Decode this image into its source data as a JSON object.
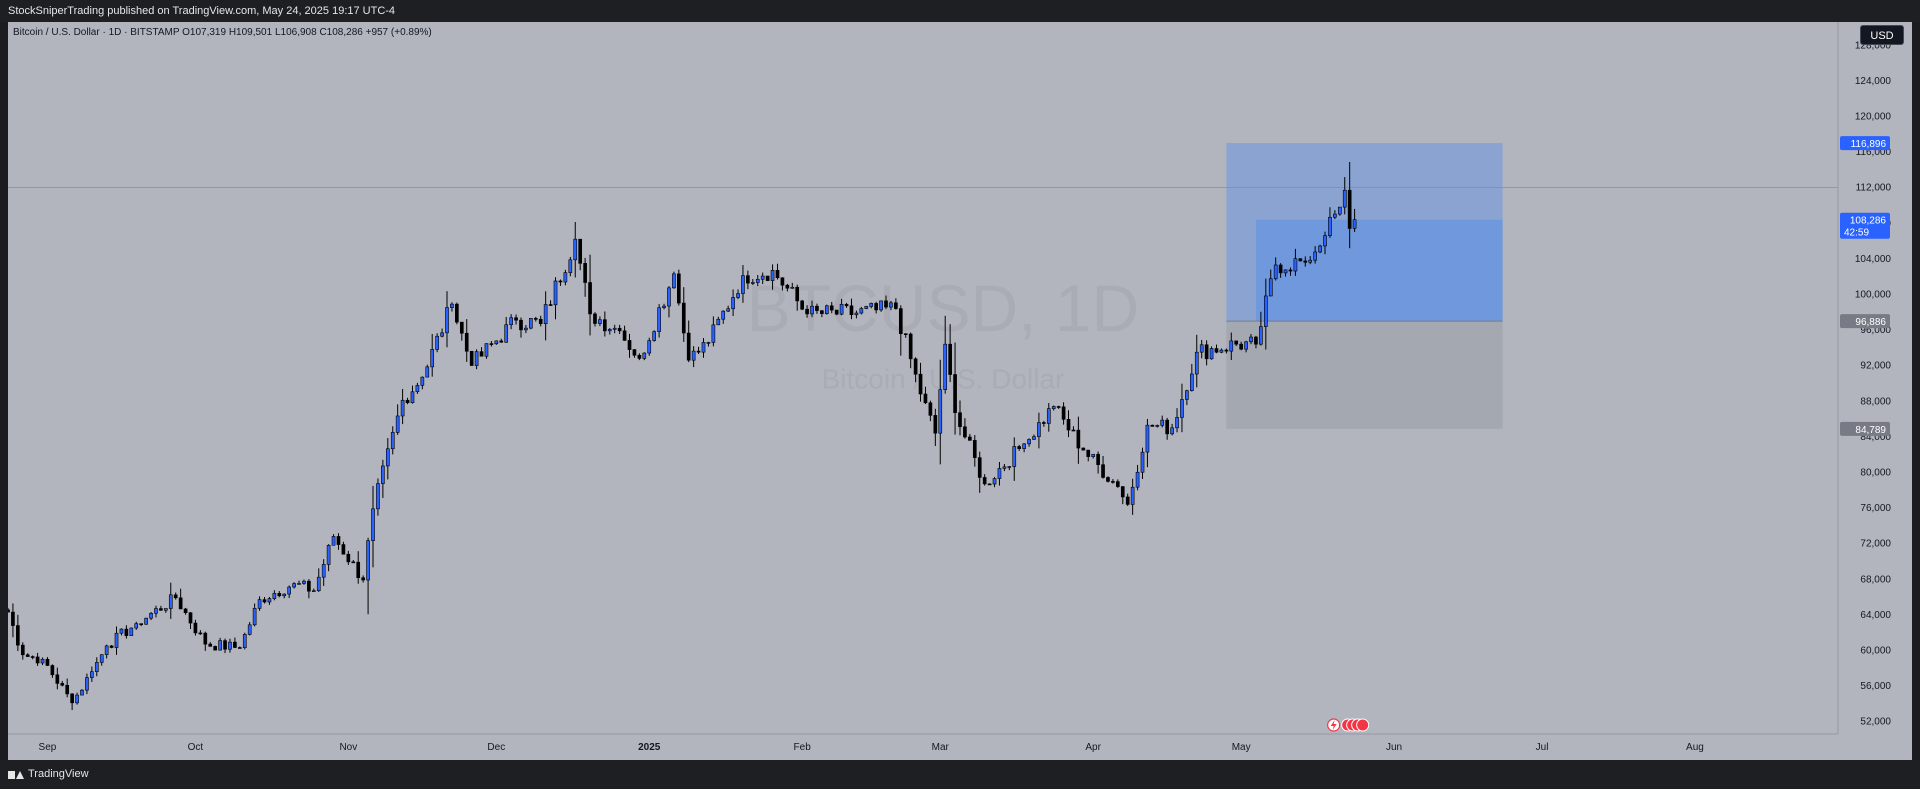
{
  "header": {
    "published_text": "StockSniperTrading published on TradingView.com, May 24, 2025 19:17 UTC-4"
  },
  "footer": {
    "brand": "TradingView"
  },
  "chart": {
    "legend": "Bitcoin / U.S. Dollar · 1D · BITSTAMP  O107,319  H109,501  L106,908  C108,286  +957 (+0.89%)",
    "currency": "USD",
    "watermark_symbol": "BTCUSD, 1D",
    "watermark_name": "Bitcoin / U.S. Dollar",
    "colors": {
      "background": "#b2b5be",
      "up_candle": "#2962ff",
      "down_candle": "#000000",
      "target_zone": "#5b8fe6",
      "stop_zone": "#9ea2ab",
      "price_tag_blue": "#2962ff",
      "price_tag_gray": "#787b86"
    }
  },
  "chart_data": {
    "type": "candlestick",
    "symbol": "Bitcoin / U.S. Dollar",
    "interval": "1D",
    "exchange": "BITSTAMP",
    "ohlc_last": {
      "open": 107319,
      "high": 109501,
      "low": 106908,
      "close": 108286,
      "change": 957,
      "change_pct": 0.89
    },
    "ylim": [
      50500,
      130500
    ],
    "y_ticks": [
      52000,
      56000,
      60000,
      64000,
      68000,
      72000,
      76000,
      80000,
      84000,
      88000,
      92000,
      96000,
      100000,
      104000,
      108000,
      112000,
      116000,
      120000,
      124000,
      128000
    ],
    "x_labels": [
      {
        "date": "2024-09-01",
        "label": "Sep"
      },
      {
        "date": "2024-10-01",
        "label": "Oct"
      },
      {
        "date": "2024-11-01",
        "label": "Nov"
      },
      {
        "date": "2024-12-01",
        "label": "Dec"
      },
      {
        "date": "2025-01-01",
        "label": "2025"
      },
      {
        "date": "2025-02-01",
        "label": "Feb"
      },
      {
        "date": "2025-03-01",
        "label": "Mar"
      },
      {
        "date": "2025-04-01",
        "label": "Apr"
      },
      {
        "date": "2025-05-01",
        "label": "May"
      },
      {
        "date": "2025-06-01",
        "label": "Jun"
      },
      {
        "date": "2025-07-01",
        "label": "Jul"
      },
      {
        "date": "2025-08-01",
        "label": "Aug"
      }
    ],
    "x_range": [
      "2024-08-24",
      "2025-08-30"
    ],
    "first_date": "2024-08-24",
    "last_date": "2025-05-24",
    "anchors": [
      {
        "date": "2024-08-24",
        "close": 64200
      },
      {
        "date": "2024-08-27",
        "close": 59400
      },
      {
        "date": "2024-08-31",
        "close": 58900
      },
      {
        "date": "2024-09-06",
        "close": 54000
      },
      {
        "date": "2024-09-10",
        "close": 57500
      },
      {
        "date": "2024-09-13",
        "close": 60400
      },
      {
        "date": "2024-09-19",
        "close": 62900
      },
      {
        "date": "2024-09-27",
        "close": 65800
      },
      {
        "date": "2024-10-03",
        "close": 60600
      },
      {
        "date": "2024-10-10",
        "close": 60200
      },
      {
        "date": "2024-10-14",
        "close": 65600
      },
      {
        "date": "2024-10-21",
        "close": 67400
      },
      {
        "date": "2024-10-25",
        "close": 66600
      },
      {
        "date": "2024-10-29",
        "close": 72700
      },
      {
        "date": "2024-11-04",
        "close": 67800
      },
      {
        "date": "2024-11-06",
        "close": 75800
      },
      {
        "date": "2024-11-12",
        "close": 88000
      },
      {
        "date": "2024-11-16",
        "close": 90600
      },
      {
        "date": "2024-11-22",
        "close": 98800
      },
      {
        "date": "2024-11-26",
        "close": 91900
      },
      {
        "date": "2024-12-05",
        "close": 97000
      },
      {
        "date": "2024-12-10",
        "close": 96600
      },
      {
        "date": "2024-12-17",
        "close": 106100
      },
      {
        "date": "2024-12-20",
        "close": 97700
      },
      {
        "date": "2024-12-26",
        "close": 95800
      },
      {
        "date": "2024-12-30",
        "close": 92700
      },
      {
        "date": "2025-01-06",
        "close": 102200
      },
      {
        "date": "2025-01-09",
        "close": 92500
      },
      {
        "date": "2025-01-13",
        "close": 94500
      },
      {
        "date": "2025-01-20",
        "close": 102000
      },
      {
        "date": "2025-01-26",
        "close": 102600
      },
      {
        "date": "2025-02-02",
        "close": 97700
      },
      {
        "date": "2025-02-12",
        "close": 97800
      },
      {
        "date": "2025-02-20",
        "close": 98300
      },
      {
        "date": "2025-02-25",
        "close": 88700
      },
      {
        "date": "2025-02-28",
        "close": 84300
      },
      {
        "date": "2025-03-02",
        "close": 94300
      },
      {
        "date": "2025-03-04",
        "close": 86600
      },
      {
        "date": "2025-03-10",
        "close": 78600
      },
      {
        "date": "2025-03-18",
        "close": 83100
      },
      {
        "date": "2025-03-24",
        "close": 87300
      },
      {
        "date": "2025-03-30",
        "close": 82400
      },
      {
        "date": "2025-04-06",
        "close": 78300
      },
      {
        "date": "2025-04-08",
        "close": 76300
      },
      {
        "date": "2025-04-12",
        "close": 85200
      },
      {
        "date": "2025-04-17",
        "close": 84900
      },
      {
        "date": "2025-04-22",
        "close": 93400
      },
      {
        "date": "2025-04-30",
        "close": 94300
      },
      {
        "date": "2025-05-04",
        "close": 94300
      },
      {
        "date": "2025-05-08",
        "close": 103200
      },
      {
        "date": "2025-05-14",
        "close": 103500
      },
      {
        "date": "2025-05-18",
        "close": 106500
      },
      {
        "date": "2025-05-21",
        "close": 109700
      },
      {
        "date": "2025-05-22",
        "close": 111600
      },
      {
        "date": "2025-05-23",
        "close": 107300
      },
      {
        "date": "2025-05-24",
        "close": 108286
      }
    ],
    "current_price_line": 111900,
    "position": {
      "type": "long",
      "start_date": "2025-04-28",
      "end_date": "2025-06-23",
      "entry": 96886,
      "target": 116896,
      "stop": 84789,
      "current": 108286
    },
    "price_tags": [
      {
        "value": 116896,
        "text": "116,896",
        "style": "blue"
      },
      {
        "value": 108286,
        "text": "108,286",
        "sub": "42:59",
        "style": "blue"
      },
      {
        "value": 96886,
        "text": "96,886",
        "style": "gray"
      },
      {
        "value": 84789,
        "text": "84,789",
        "style": "gray"
      }
    ]
  }
}
